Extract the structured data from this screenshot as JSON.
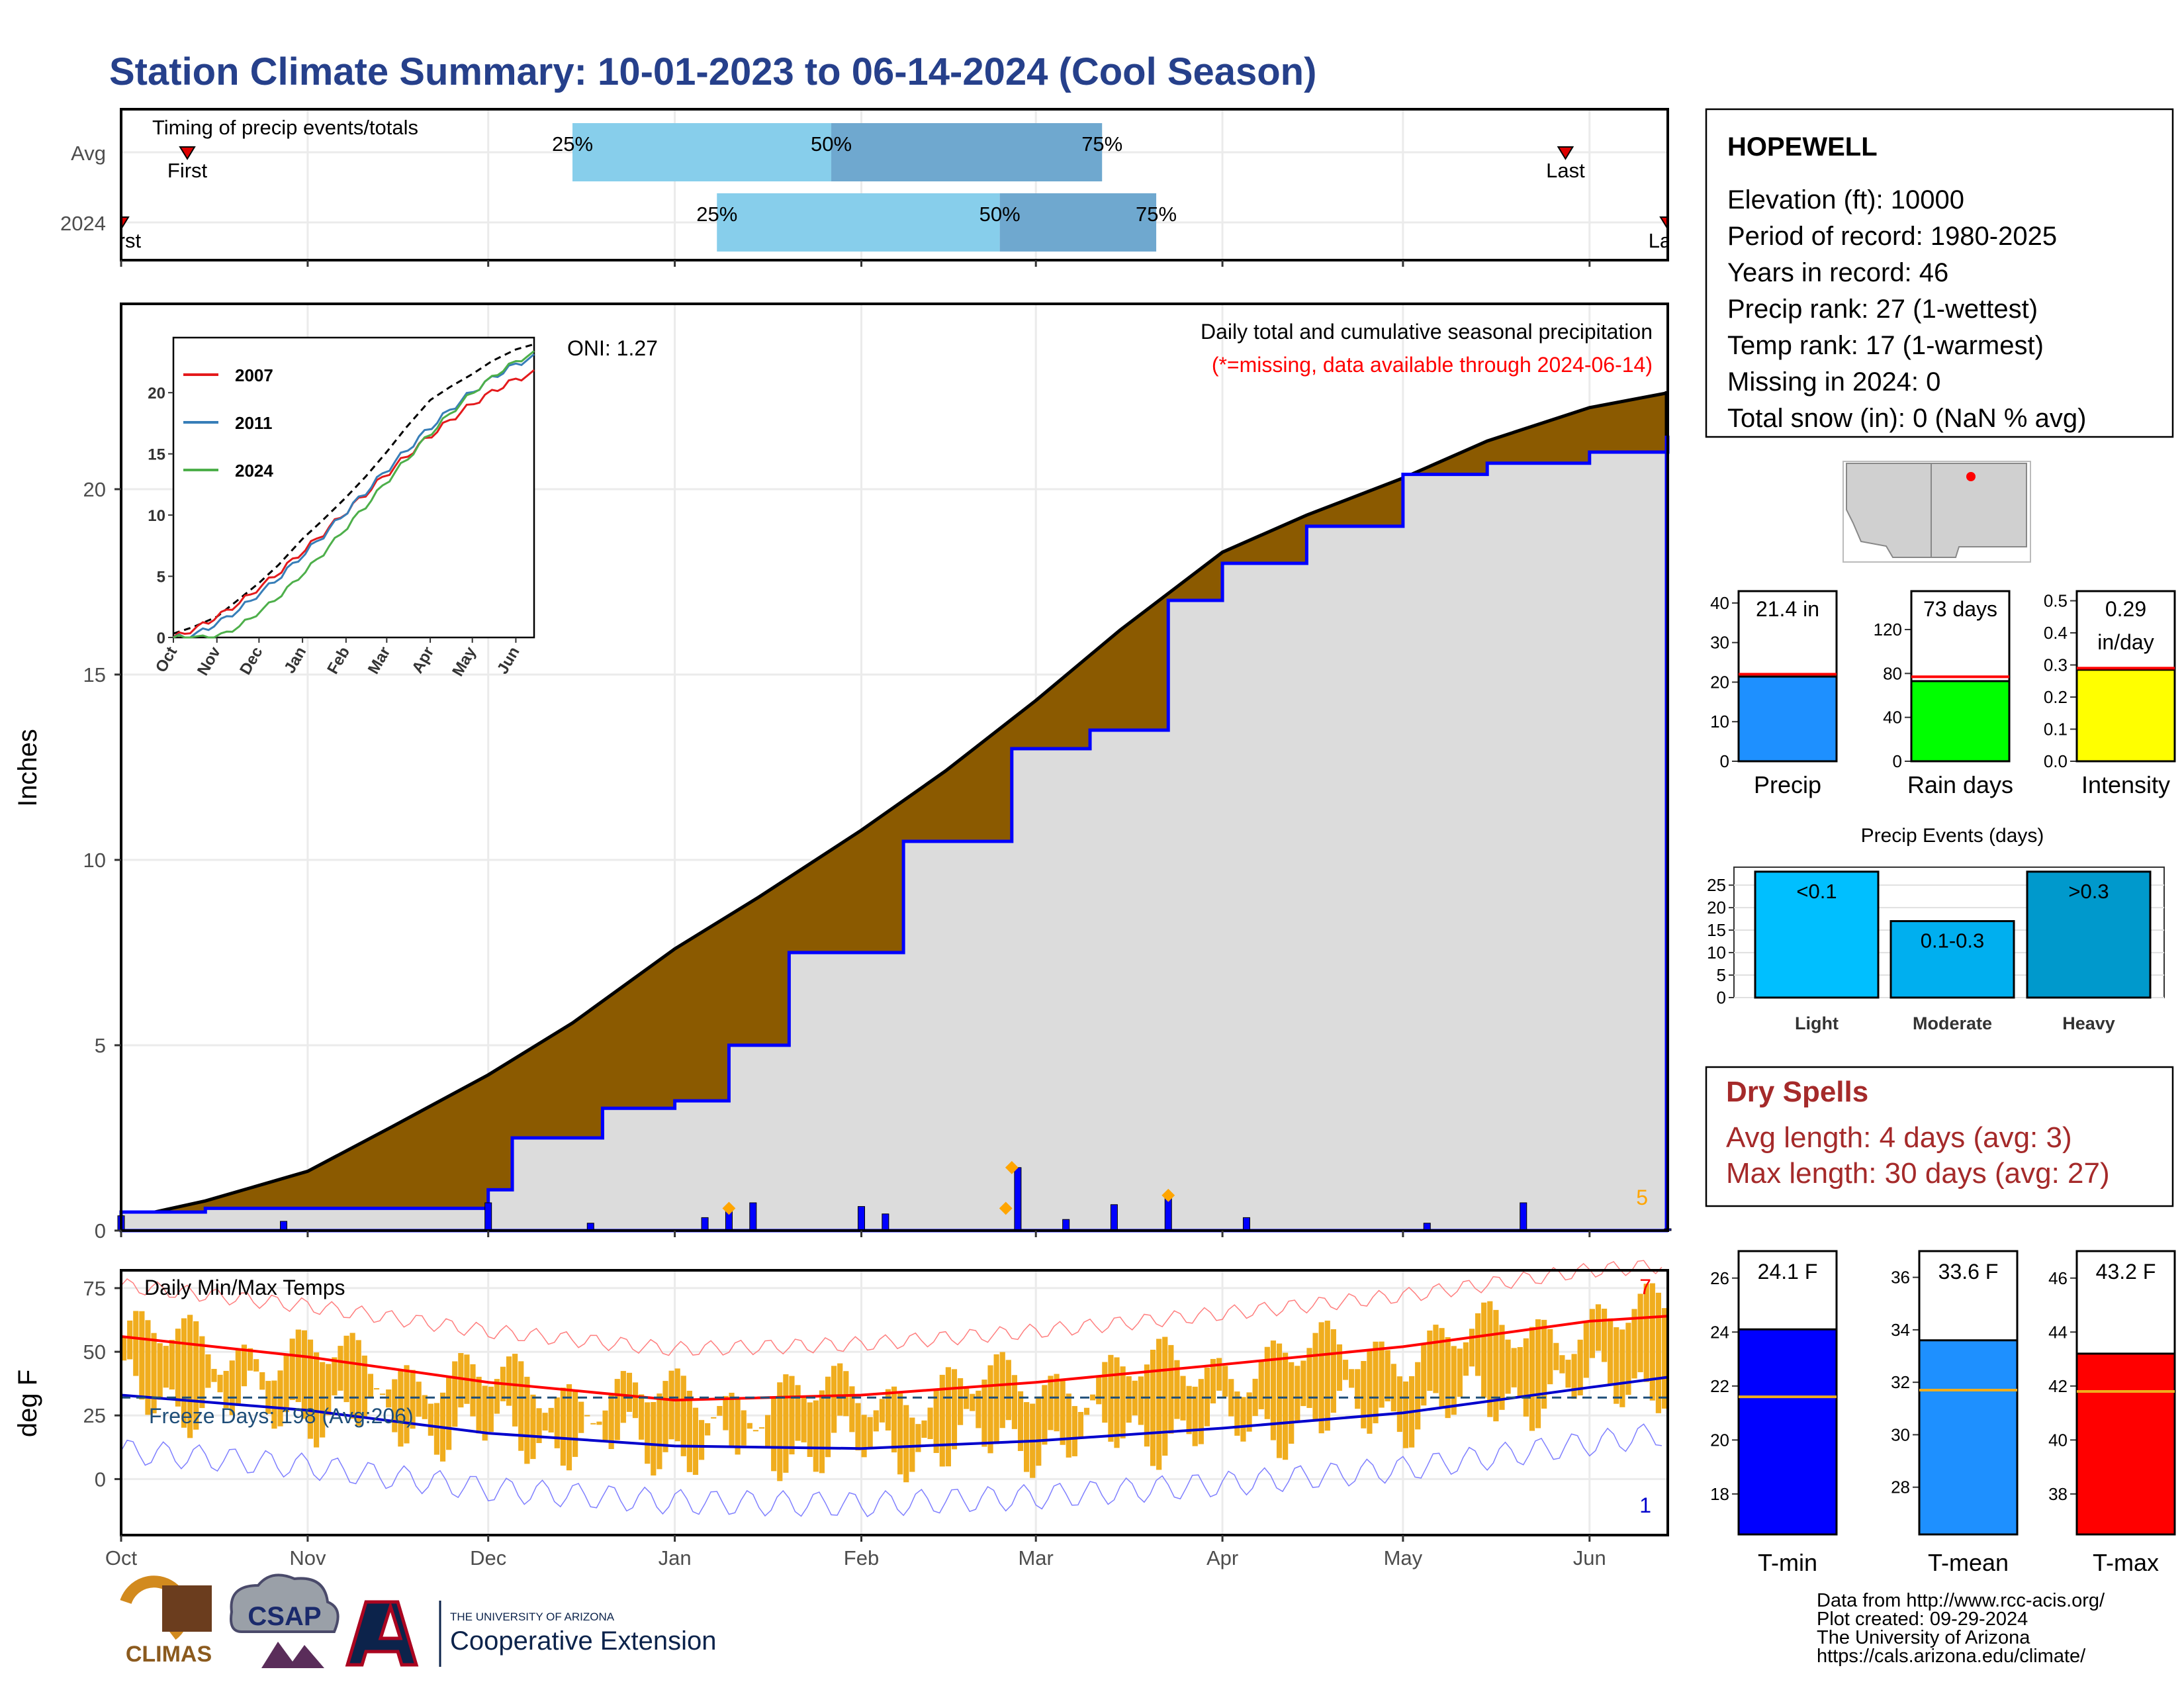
{
  "title": "Station Climate Summary: 10-01-2023 to 06-14-2024 (Cool Season)",
  "colors": {
    "title": "#26408b",
    "cumulative_fill": "#8b5a00",
    "current_season_fill": "#dcdcdc",
    "current_season_line": "#0000ff",
    "daily_bar": "#0000ff",
    "temp_bar": "#f0ad1e",
    "tmax_line": "#ff0000",
    "tmin_line": "#0000cc",
    "freeze_line": "#1f4e79",
    "dry_spells": "#a52a2a"
  },
  "timing_panel": {
    "label": "Timing of precip events/totals",
    "rows": [
      {
        "row_label": "Avg",
        "first_label": "First",
        "last_label": "Last",
        "p25": "25%",
        "p50": "50%",
        "p75": "75%",
        "first_date": "2023-10-12",
        "q25_date": "2023-12-15",
        "q50_date": "2024-01-27",
        "q75_date": "2024-03-12",
        "last_date": "2024-05-28"
      },
      {
        "row_label": "2024",
        "first_label": "First",
        "last_label": "Last",
        "p25": "25%",
        "p50": "50%",
        "p75": "75%",
        "first_date": "2023-10-01",
        "q25_date": "2024-01-08",
        "q50_date": "2024-02-24",
        "q75_date": "2024-03-21",
        "last_date": "2024-06-14"
      }
    ]
  },
  "main_panel": {
    "ylabel": "Inches",
    "oni": "ONI: 1.27",
    "subtitle": "Daily total and cumulative seasonal precipitation",
    "missing_note": "(*=missing, data available through 2024-06-14)",
    "missing_count": "5",
    "y_ticks": [
      "0",
      "5",
      "10",
      "15",
      "20"
    ],
    "x_ticks": [
      "Oct",
      "Nov",
      "Dec",
      "Jan",
      "Feb",
      "Mar",
      "Apr",
      "May",
      "Jun"
    ]
  },
  "inset": {
    "y_ticks": [
      "0",
      "5",
      "10",
      "15",
      "20"
    ],
    "x_ticks": [
      "Oct",
      "Nov",
      "Dec",
      "Jan",
      "Feb",
      "Mar",
      "Apr",
      "May",
      "Jun"
    ],
    "legend": [
      {
        "name": "2007",
        "color": "#e41a1c"
      },
      {
        "name": "2011",
        "color": "#377eb8"
      },
      {
        "name": "2024",
        "color": "#4daf4a"
      }
    ]
  },
  "temp_panel": {
    "label": "Daily Min/Max Temps",
    "ylabel": "deg F",
    "freeze_text": "Freeze Days: 198 (Avg:206)",
    "freeze_threshold": 32,
    "y_ticks": [
      "0",
      "25",
      "50",
      "75"
    ],
    "max_count": "7",
    "min_count": "1",
    "x_ticks": [
      "Oct",
      "Nov",
      "Dec",
      "Jan",
      "Feb",
      "Mar",
      "Apr",
      "May",
      "Jun"
    ]
  },
  "station": {
    "name": "HOPEWELL",
    "lines": [
      "Elevation (ft): 10000",
      "Period of record: 1980-2025",
      "Years in record: 46",
      "Precip rank: 27 (1-wettest)",
      "Temp rank: 17 (1-warmest)",
      "Missing in 2024: 0",
      "Total snow (in): 0 (NaN % avg)"
    ]
  },
  "mini_bars": [
    {
      "label": "Precip",
      "value_text": "21.4 in",
      "value": 21.4,
      "avg": 22,
      "ymax": 43,
      "ticks": [
        "0",
        "10",
        "20",
        "30",
        "40"
      ],
      "tick_vals": [
        0,
        10,
        20,
        30,
        40
      ],
      "color": "#1e90ff"
    },
    {
      "label": "Rain days",
      "value_text": "73 days",
      "value": 73,
      "avg": 77,
      "ymax": 155,
      "ticks": [
        "0",
        "40",
        "80",
        "120"
      ],
      "tick_vals": [
        0,
        40,
        80,
        120
      ],
      "color": "#00ff00"
    },
    {
      "label": "Intensity",
      "value_text": "0.29",
      "value_text2": "in/day",
      "value": 0.285,
      "avg": 0.29,
      "ymax": 0.53,
      "ticks": [
        "0.0",
        "0.1",
        "0.2",
        "0.3",
        "0.4",
        "0.5"
      ],
      "tick_vals": [
        0,
        0.1,
        0.2,
        0.3,
        0.4,
        0.5
      ],
      "color": "#ffff00"
    }
  ],
  "precip_events": {
    "title": "Precip Events (days)",
    "ticks": [
      "0",
      "5",
      "10",
      "15",
      "20",
      "25"
    ],
    "bars": [
      {
        "category": "Light",
        "label": "<0.1",
        "value": 28,
        "color": "#00bfff"
      },
      {
        "category": "Moderate",
        "label": "0.1-0.3",
        "value": 17,
        "color": "#00afef"
      },
      {
        "category": "Heavy",
        "label": ">0.3",
        "value": 28,
        "color": "#0099cc"
      }
    ]
  },
  "dry_spells": {
    "title": "Dry Spells",
    "avg_length": "Avg length: 4 days (avg: 3)",
    "max_length": "Max length: 30 days (avg: 27)"
  },
  "temp_bars": [
    {
      "label": "T-min",
      "value_text": "24.1 F",
      "value": 24.1,
      "avg": 21.6,
      "ymin": 16.5,
      "ymax": 27,
      "ticks": [
        "18",
        "20",
        "22",
        "24",
        "26"
      ],
      "tick_vals": [
        18,
        20,
        22,
        24,
        26
      ],
      "color": "#0000ff"
    },
    {
      "label": "T-mean",
      "value_text": "33.6 F",
      "value": 33.6,
      "avg": 31.7,
      "ymin": 26.2,
      "ymax": 37,
      "ticks": [
        "28",
        "30",
        "32",
        "34",
        "36"
      ],
      "tick_vals": [
        28,
        30,
        32,
        34,
        36
      ],
      "color": "#1e90ff"
    },
    {
      "label": "T-max",
      "value_text": "43.2 F",
      "value": 43.2,
      "avg": 41.8,
      "ymin": 36.5,
      "ymax": 47,
      "ticks": [
        "38",
        "40",
        "42",
        "44",
        "46"
      ],
      "tick_vals": [
        38,
        40,
        42,
        44,
        46
      ],
      "color": "#ff0000"
    }
  ],
  "logos": {
    "climas": "CLIMAS",
    "csap": "CSAP",
    "ua_small": "THE UNIVERSITY OF ARIZONA",
    "ua_big": "Cooperative Extension"
  },
  "credits": [
    "Data from http://www.rcc-acis.org/",
    "Plot created: 09-29-2024",
    "The University of Arizona",
    "https://cals.arizona.edu/climate/"
  ],
  "chart_data": {
    "type": "area",
    "title": "Station Climate Summary: 10-01-2023 to 06-14-2024 (Cool Season)",
    "ylabel": "Inches",
    "ylim": [
      0,
      25
    ],
    "series": [
      {
        "name": "cumulative average",
        "x": [
          "2023-10-01",
          "2023-10-15",
          "2023-11-01",
          "2023-11-15",
          "2023-12-01",
          "2023-12-15",
          "2024-01-01",
          "2024-01-15",
          "2024-02-01",
          "2024-02-15",
          "2024-03-01",
          "2024-03-15",
          "2024-04-01",
          "2024-04-15",
          "2024-05-01",
          "2024-05-15",
          "2024-06-01",
          "2024-06-14"
        ],
        "y": [
          0.3,
          0.8,
          1.6,
          2.8,
          4.2,
          5.6,
          7.6,
          9.0,
          10.8,
          12.4,
          14.3,
          16.2,
          18.3,
          19.3,
          20.3,
          21.3,
          22.2,
          22.6
        ]
      },
      {
        "name": "cumulative 2024",
        "x": [
          "2023-10-01",
          "2023-10-15",
          "2023-11-01",
          "2023-11-15",
          "2023-12-01",
          "2023-12-05",
          "2023-12-20",
          "2024-01-01",
          "2024-01-10",
          "2024-01-20",
          "2024-02-01",
          "2024-02-08",
          "2024-02-20",
          "2024-02-26",
          "2024-03-10",
          "2024-03-23",
          "2024-04-01",
          "2024-04-15",
          "2024-05-01",
          "2024-05-15",
          "2024-06-01",
          "2024-06-14"
        ],
        "y": [
          0.5,
          0.6,
          0.6,
          0.6,
          1.1,
          2.5,
          3.3,
          3.5,
          5.0,
          7.5,
          7.5,
          10.5,
          10.5,
          13.0,
          13.5,
          17.0,
          18.0,
          19.0,
          20.4,
          20.7,
          21.0,
          21.4
        ]
      }
    ],
    "daily_precip": {
      "x": [
        "2023-10-01",
        "2023-10-28",
        "2023-12-01",
        "2023-12-18",
        "2024-01-06",
        "2024-01-10",
        "2024-01-14",
        "2024-02-01",
        "2024-02-05",
        "2024-02-27",
        "2024-03-06",
        "2024-03-14",
        "2024-03-23",
        "2024-04-05",
        "2024-05-05",
        "2024-05-21",
        "2024-06-14"
      ],
      "y": [
        0.4,
        0.25,
        0.75,
        0.2,
        0.35,
        0.6,
        0.75,
        0.65,
        0.45,
        1.7,
        0.3,
        0.7,
        0.95,
        0.35,
        0.2,
        0.75,
        0.05
      ]
    },
    "temperature": {
      "ylabel": "deg F",
      "avg_max_x": [
        "2023-10-01",
        "2023-11-01",
        "2023-12-01",
        "2024-01-01",
        "2024-02-01",
        "2024-03-01",
        "2024-04-01",
        "2024-05-01",
        "2024-06-01",
        "2024-06-14"
      ],
      "avg_max_y": [
        56,
        48,
        38,
        31,
        33,
        38,
        45,
        52,
        62,
        64
      ],
      "avg_min_x": [
        "2023-10-01",
        "2023-11-01",
        "2023-12-01",
        "2024-01-01",
        "2024-02-01",
        "2024-03-01",
        "2024-04-01",
        "2024-05-01",
        "2024-06-01",
        "2024-06-14"
      ],
      "avg_min_y": [
        33,
        27,
        18,
        13,
        12,
        15,
        20,
        26,
        36,
        40
      ],
      "freeze_threshold": 32
    }
  }
}
